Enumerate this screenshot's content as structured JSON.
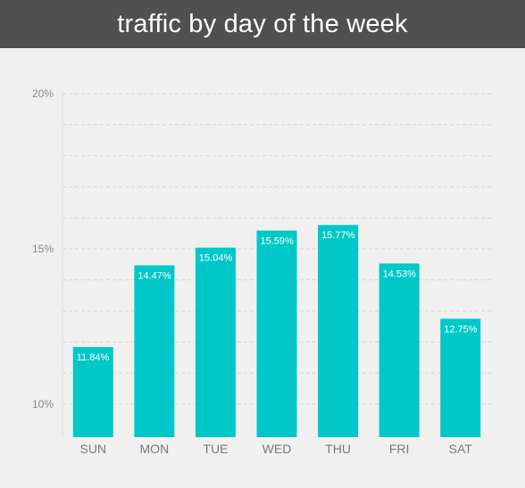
{
  "header": {
    "title": "traffic by day of the week"
  },
  "chart_data": {
    "type": "bar",
    "title": "traffic by day of the week",
    "categories": [
      "SUN",
      "MON",
      "TUE",
      "WED",
      "THU",
      "FRI",
      "SAT"
    ],
    "values": [
      11.84,
      14.47,
      15.04,
      15.59,
      15.77,
      14.53,
      12.75
    ],
    "value_labels": [
      "11.84%",
      "14.47%",
      "15.04%",
      "15.59%",
      "15.77%",
      "14.53%",
      "12.75%"
    ],
    "ylim": [
      9,
      20
    ],
    "yticks": [
      10,
      15,
      20
    ],
    "ytick_labels": [
      "10%",
      "15%",
      "20%"
    ],
    "grid": true,
    "colors": {
      "bar": "#00c8c8",
      "header": "#505050",
      "background": "#f0f0f0"
    }
  }
}
